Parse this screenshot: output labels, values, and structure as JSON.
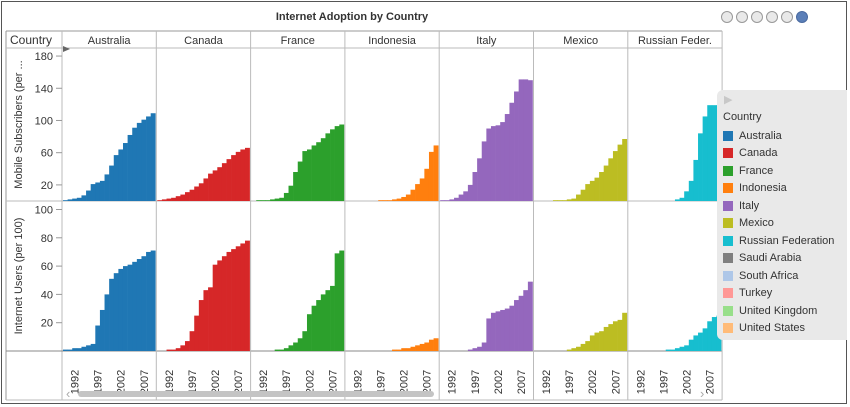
{
  "title": "Internet Adoption by Country",
  "pager": {
    "pages": 6,
    "active": 6
  },
  "chart_data": {
    "type": "bar",
    "layout": "small-multiples",
    "facet_label": "Country",
    "x": [
      1990,
      1991,
      1992,
      1993,
      1994,
      1995,
      1996,
      1997,
      1998,
      1999,
      2000,
      2001,
      2002,
      2003,
      2004,
      2005,
      2006,
      2007,
      2008,
      2009
    ],
    "x_ticks": [
      "1992",
      "1997",
      "2002",
      "2007"
    ],
    "columns": [
      "Australia",
      "Canada",
      "France",
      "Indonesia",
      "Italy",
      "Mexico",
      "Russian Feder."
    ],
    "rows": [
      {
        "ylabel": "Mobile Subscribers (per ...",
        "ylim": [
          0,
          190
        ],
        "yticks": [
          20,
          60,
          100,
          140,
          180
        ],
        "series": [
          {
            "name": "Australia",
            "values": [
              1,
              2,
              3,
              4,
              7,
              13,
              21,
              23,
              25,
              33,
              44,
              57,
              64,
              72,
              82,
              91,
              97,
              101,
              105,
              109
            ]
          },
          {
            "name": "Canada",
            "values": [
              1,
              2,
              3,
              4,
              6,
              8,
              11,
              14,
              18,
              22,
              28,
              34,
              38,
              42,
              47,
              52,
              57,
              61,
              64,
              66
            ]
          },
          {
            "name": "France",
            "values": [
              0,
              1,
              1,
              1,
              2,
              3,
              4,
              10,
              19,
              36,
              49,
              62,
              64,
              69,
              73,
              78,
              84,
              89,
              93,
              95
            ]
          },
          {
            "name": "Indonesia",
            "values": [
              0,
              0,
              0,
              0,
              0,
              0,
              0,
              1,
              1,
              1,
              2,
              3,
              5,
              8,
              14,
              21,
              28,
              40,
              61,
              69
            ]
          },
          {
            "name": "Italy",
            "values": [
              1,
              1,
              2,
              4,
              8,
              12,
              20,
              36,
              53,
              74,
              90,
              93,
              94,
              98,
              108,
              122,
              136,
              151,
              151,
              150
            ]
          },
          {
            "name": "Mexico",
            "values": [
              0,
              0,
              0,
              0,
              1,
              1,
              1,
              2,
              3,
              8,
              14,
              21,
              25,
              29,
              36,
              44,
              53,
              62,
              70,
              77
            ]
          },
          {
            "name": "Russian Federation",
            "values": [
              0,
              0,
              0,
              0,
              0,
              0,
              0,
              0,
              0,
              0,
              2,
              4,
              12,
              25,
              51,
              84,
              105,
              119,
              119,
              119
            ]
          }
        ]
      },
      {
        "ylabel": "Internet Users (per 100)",
        "ylim": [
          0,
          106
        ],
        "yticks": [
          20,
          40,
          60,
          80,
          100
        ],
        "series": [
          {
            "name": "Australia",
            "values": [
              1,
              1,
              2,
              2,
              3,
              4,
              5,
              18,
              29,
              40,
              51,
              55,
              58,
              60,
              61,
              63,
              65,
              67,
              70,
              71
            ]
          },
          {
            "name": "Canada",
            "values": [
              0,
              0,
              1,
              1,
              2,
              4,
              7,
              14,
              25,
              36,
              43,
              45,
              61,
              64,
              67,
              70,
              72,
              74,
              76,
              78
            ]
          },
          {
            "name": "France",
            "values": [
              0,
              0,
              0,
              0,
              0,
              1,
              1,
              2,
              4,
              6,
              9,
              14,
              26,
              32,
              36,
              40,
              43,
              46,
              69,
              71
            ]
          },
          {
            "name": "Indonesia",
            "values": [
              0,
              0,
              0,
              0,
              0,
              0,
              0,
              0,
              0,
              0,
              1,
              1,
              2,
              2,
              3,
              4,
              5,
              6,
              8,
              9
            ]
          },
          {
            "name": "Italy",
            "values": [
              0,
              0,
              0,
              0,
              0,
              0,
              1,
              2,
              3,
              6,
              23,
              27,
              28,
              29,
              30,
              32,
              36,
              39,
              43,
              49
            ]
          },
          {
            "name": "Mexico",
            "values": [
              0,
              0,
              0,
              0,
              0,
              0,
              0,
              1,
              2,
              3,
              5,
              7,
              11,
              13,
              14,
              17,
              19,
              21,
              22,
              27
            ]
          },
          {
            "name": "Russian Federation",
            "values": [
              0,
              0,
              0,
              0,
              0,
              0,
              0,
              0,
              1,
              1,
              2,
              3,
              4,
              8,
              11,
              13,
              16,
              21,
              24,
              25
            ]
          }
        ]
      }
    ],
    "colors": [
      "#1f77b4",
      "#d62728",
      "#2ca02c",
      "#ff7f0e",
      "#9467bd",
      "#bcbd22",
      "#17becf"
    ],
    "legend": {
      "title": "Country",
      "placement": "right",
      "items": [
        {
          "name": "Australia",
          "color": "#1f77b4"
        },
        {
          "name": "Canada",
          "color": "#d62728"
        },
        {
          "name": "France",
          "color": "#2ca02c"
        },
        {
          "name": "Indonesia",
          "color": "#ff7f0e"
        },
        {
          "name": "Italy",
          "color": "#9467bd"
        },
        {
          "name": "Mexico",
          "color": "#bcbd22"
        },
        {
          "name": "Russian Federation",
          "color": "#17becf"
        },
        {
          "name": "Saudi Arabia",
          "color": "#7f7f7f"
        },
        {
          "name": "South Africa",
          "color": "#aec7e8"
        },
        {
          "name": "Turkey",
          "color": "#ff9896"
        },
        {
          "name": "United Kingdom",
          "color": "#98df8a"
        },
        {
          "name": "United States",
          "color": "#ffbb78"
        }
      ]
    }
  }
}
